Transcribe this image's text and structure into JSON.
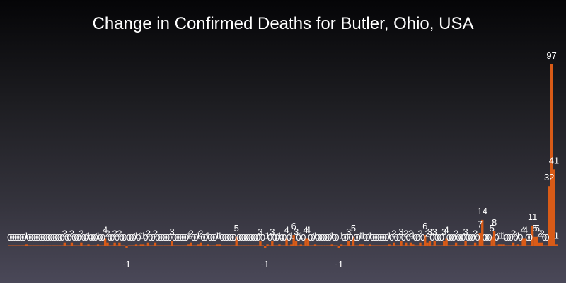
{
  "chart_data": {
    "type": "bar",
    "title": "Change in Confirmed Deaths for Butler, Ohio, USA",
    "xlabel": "",
    "ylabel": "",
    "ylim": [
      -2,
      100
    ],
    "grid": false,
    "legend": "none",
    "colors": {
      "bar": "#d95b17",
      "label": "#ffffff"
    },
    "values": [
      0,
      0,
      0,
      0,
      0,
      0,
      0,
      1,
      0,
      0,
      0,
      0,
      0,
      0,
      0,
      0,
      0,
      0,
      0,
      0,
      0,
      0,
      0,
      2,
      0,
      0,
      2,
      0,
      0,
      0,
      2,
      0,
      0,
      1,
      0,
      0,
      0,
      1,
      0,
      0,
      4,
      2,
      0,
      0,
      2,
      0,
      2,
      0,
      0,
      -1,
      0,
      0,
      0,
      1,
      0,
      1,
      1,
      0,
      2,
      0,
      0,
      2,
      0,
      0,
      0,
      0,
      0,
      0,
      3,
      0,
      0,
      0,
      0,
      0,
      0,
      1,
      2,
      0,
      0,
      1,
      2,
      0,
      0,
      1,
      0,
      0,
      0,
      1,
      1,
      0,
      0,
      0,
      0,
      0,
      0,
      5,
      0,
      0,
      0,
      0,
      0,
      0,
      0,
      0,
      0,
      3,
      0,
      -1,
      1,
      0,
      3,
      0,
      0,
      1,
      0,
      0,
      4,
      0,
      1,
      6,
      3,
      0,
      1,
      0,
      4,
      4,
      0,
      0,
      1,
      0,
      0,
      0,
      0,
      0,
      0,
      1,
      0,
      0,
      -1,
      1,
      0,
      0,
      3,
      0,
      5,
      0,
      0,
      1,
      1,
      0,
      0,
      1,
      0,
      0,
      0,
      0,
      0,
      0,
      0,
      1,
      0,
      2,
      0,
      0,
      3,
      0,
      2,
      0,
      2,
      1,
      0,
      0,
      2,
      0,
      6,
      2,
      3,
      0,
      3,
      0,
      0,
      0,
      3,
      4,
      0,
      0,
      0,
      2,
      0,
      0,
      0,
      3,
      0,
      0,
      0,
      2,
      0,
      7,
      14,
      0,
      0,
      0,
      5,
      8,
      0,
      1,
      1,
      1,
      0,
      0,
      0,
      2,
      0,
      1,
      0,
      4,
      4,
      0,
      0,
      11,
      5,
      5,
      2,
      2,
      0,
      0,
      32,
      97,
      41,
      1
    ]
  }
}
